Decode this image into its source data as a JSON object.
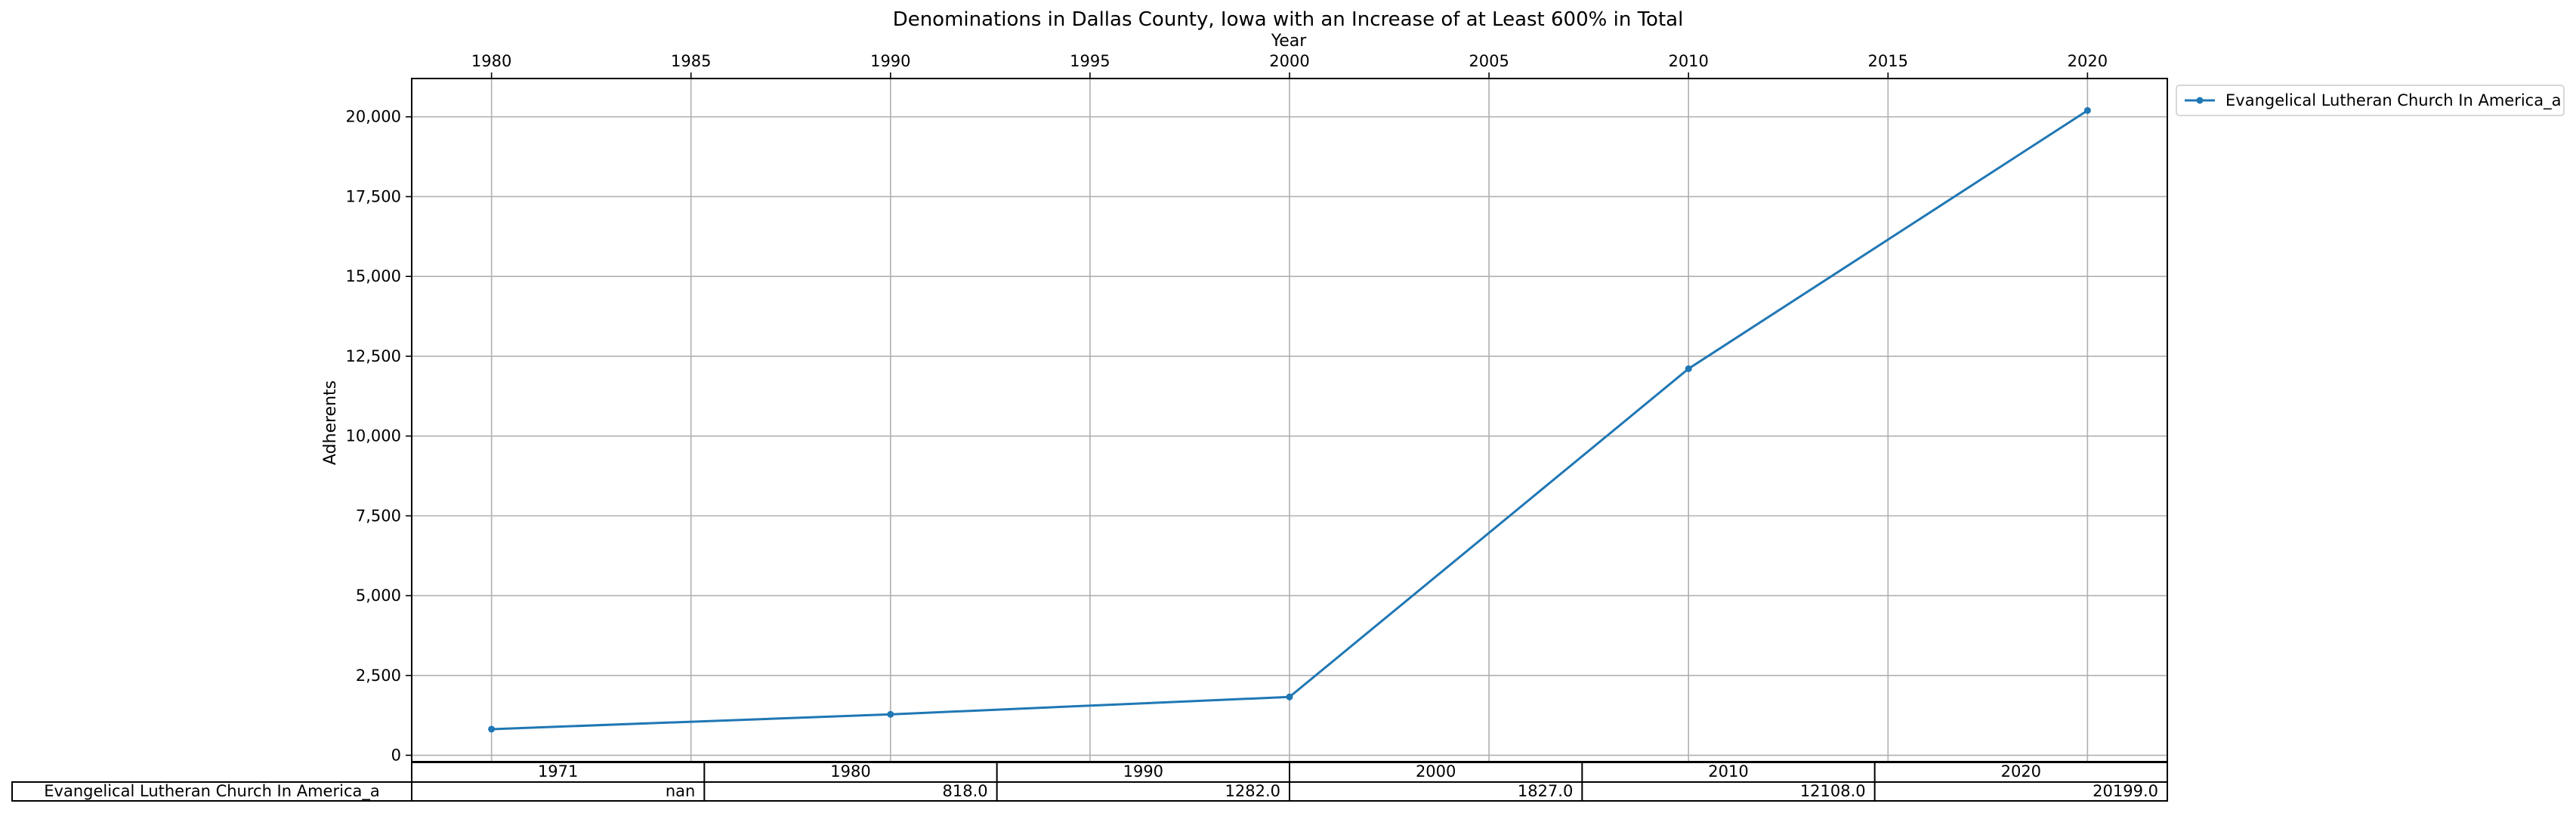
{
  "chart_data": {
    "type": "line",
    "title": "Denominations in Dallas County, Iowa with an Increase of at Least 600% in Total",
    "xlabel": "Year",
    "ylabel": "Adherents",
    "xlim": [
      1978,
      2022
    ],
    "ylim": [
      -200,
      21200
    ],
    "x_ticks": [
      "1980",
      "1985",
      "1990",
      "1995",
      "2000",
      "2005",
      "2010",
      "2015",
      "2020"
    ],
    "y_ticks": [
      "0",
      "2,500",
      "5,000",
      "7,500",
      "10,000",
      "12,500",
      "15,000",
      "17,500",
      "20,000"
    ],
    "grid": true,
    "legend_position": "outside-top-right",
    "series": [
      {
        "name": "Evangelical Lutheran Church In America_a",
        "color": "#1f77b4",
        "x": [
          1980,
          1990,
          2000,
          2010,
          2020
        ],
        "values": [
          818,
          1282,
          1827,
          12108,
          20199
        ]
      }
    ],
    "table": {
      "columns": [
        "1971",
        "1980",
        "1990",
        "2000",
        "2010",
        "2020"
      ],
      "rows": [
        {
          "label": "Evangelical Lutheran Church In America_a",
          "cells": [
            "nan",
            "818.0",
            "1282.0",
            "1827.0",
            "12108.0",
            "20199.0"
          ]
        }
      ]
    }
  }
}
